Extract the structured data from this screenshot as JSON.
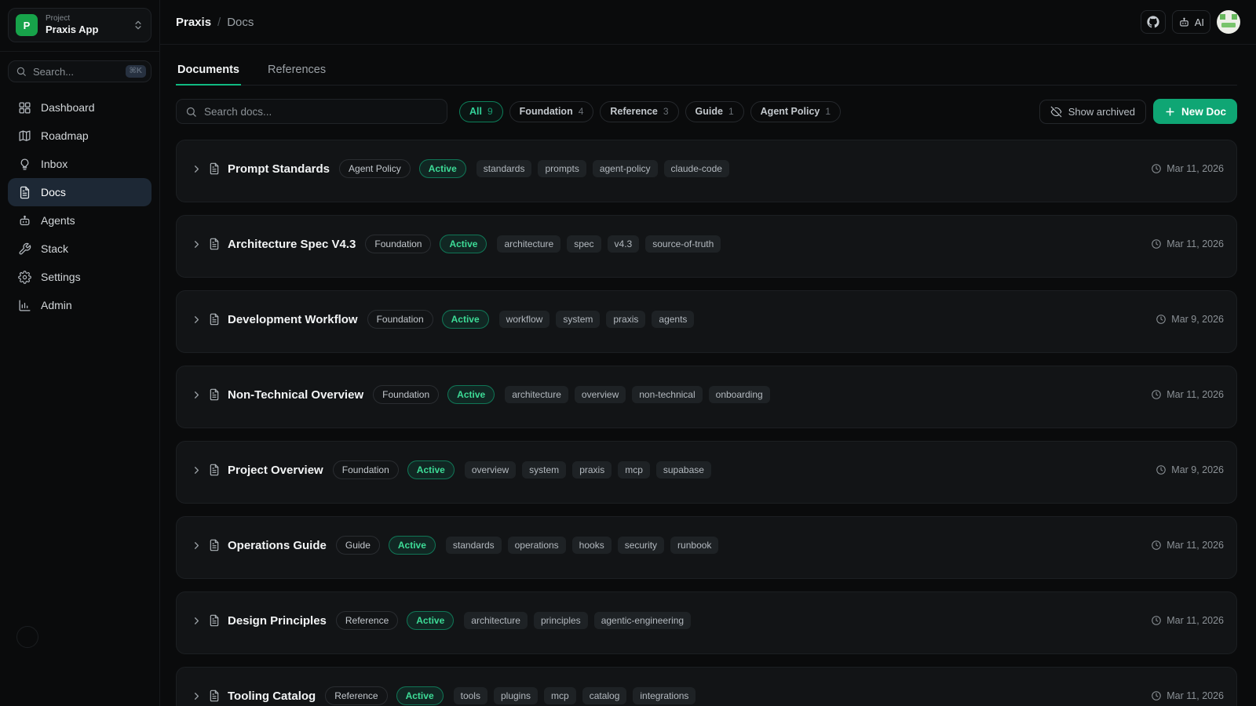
{
  "project": {
    "label": "Project",
    "name": "Praxis App",
    "initial": "P"
  },
  "sidebar": {
    "search": {
      "placeholder": "Search...",
      "shortcut": "⌘K"
    },
    "items": [
      {
        "label": "Dashboard",
        "icon": "dashboard-icon",
        "active": false
      },
      {
        "label": "Roadmap",
        "icon": "map-icon",
        "active": false
      },
      {
        "label": "Inbox",
        "icon": "lightbulb-icon",
        "active": false
      },
      {
        "label": "Docs",
        "icon": "document-icon",
        "active": true
      },
      {
        "label": "Agents",
        "icon": "robot-icon",
        "active": false
      },
      {
        "label": "Stack",
        "icon": "wrench-icon",
        "active": false
      },
      {
        "label": "Settings",
        "icon": "gear-icon",
        "active": false
      },
      {
        "label": "Admin",
        "icon": "bar-chart-icon",
        "active": false
      }
    ]
  },
  "header": {
    "breadcrumb": {
      "project": "Praxis",
      "separator": "/",
      "page": "Docs"
    },
    "ai_button_label": "AI"
  },
  "tabs": [
    {
      "label": "Documents",
      "active": true
    },
    {
      "label": "References",
      "active": false
    }
  ],
  "toolbar": {
    "search_placeholder": "Search docs...",
    "filters": [
      {
        "label": "All",
        "count": "9",
        "active": true
      },
      {
        "label": "Foundation",
        "count": "4",
        "active": false
      },
      {
        "label": "Reference",
        "count": "3",
        "active": false
      },
      {
        "label": "Guide",
        "count": "1",
        "active": false
      },
      {
        "label": "Agent Policy",
        "count": "1",
        "active": false
      }
    ],
    "show_archived_label": "Show archived",
    "new_doc_label": "New Doc"
  },
  "docs": [
    {
      "title": "Prompt Standards",
      "category": "Agent Policy",
      "status": "Active",
      "tags": [
        "standards",
        "prompts",
        "agent-policy",
        "claude-code"
      ],
      "date": "Mar 11, 2026"
    },
    {
      "title": "Architecture Spec V4.3",
      "category": "Foundation",
      "status": "Active",
      "tags": [
        "architecture",
        "spec",
        "v4.3",
        "source-of-truth"
      ],
      "date": "Mar 11, 2026"
    },
    {
      "title": "Development Workflow",
      "category": "Foundation",
      "status": "Active",
      "tags": [
        "workflow",
        "system",
        "praxis",
        "agents"
      ],
      "date": "Mar 9, 2026"
    },
    {
      "title": "Non-Technical Overview",
      "category": "Foundation",
      "status": "Active",
      "tags": [
        "architecture",
        "overview",
        "non-technical",
        "onboarding"
      ],
      "date": "Mar 11, 2026"
    },
    {
      "title": "Project Overview",
      "category": "Foundation",
      "status": "Active",
      "tags": [
        "overview",
        "system",
        "praxis",
        "mcp",
        "supabase"
      ],
      "date": "Mar 9, 2026"
    },
    {
      "title": "Operations Guide",
      "category": "Guide",
      "status": "Active",
      "tags": [
        "standards",
        "operations",
        "hooks",
        "security",
        "runbook"
      ],
      "date": "Mar 11, 2026"
    },
    {
      "title": "Design Principles",
      "category": "Reference",
      "status": "Active",
      "tags": [
        "architecture",
        "principles",
        "agentic-engineering"
      ],
      "date": "Mar 11, 2026"
    },
    {
      "title": "Tooling Catalog",
      "category": "Reference",
      "status": "Active",
      "tags": [
        "tools",
        "plugins",
        "mcp",
        "catalog",
        "integrations"
      ],
      "date": "Mar 11, 2026"
    }
  ],
  "colors": {
    "accent_green": "#10b981",
    "new_doc_button": "#0fa674",
    "status_active_text": "#3ddc97",
    "project_avatar": "#17a34a",
    "active_nav_bg": "#1d2835",
    "page_bg": "#0a0b0c",
    "card_bg": "#121416"
  }
}
